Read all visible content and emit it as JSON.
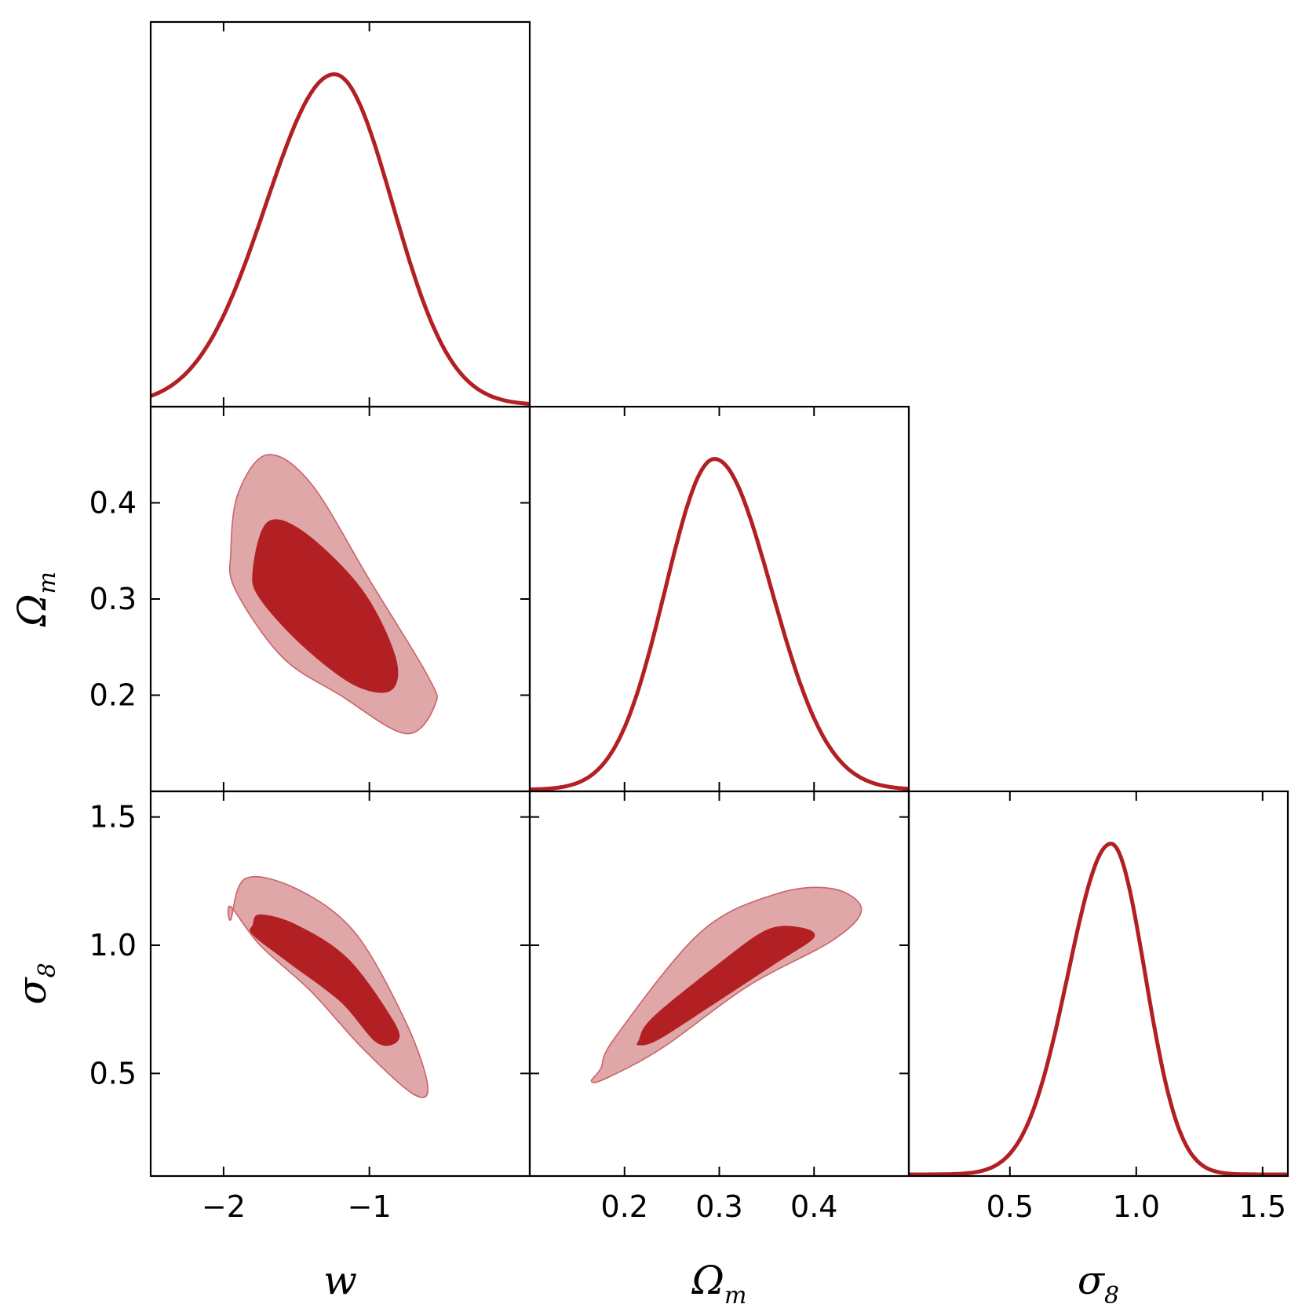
{
  "chart_data": {
    "type": "triangle",
    "colors": {
      "line": "#b22024",
      "inner_fill": "#b22024",
      "outer_fill": "#e0a7a8",
      "outer_edge": "#c9636a"
    },
    "parameters": [
      {
        "id": "w",
        "symbol": "w",
        "subscript": "",
        "range": [
          -2.5,
          0.1
        ],
        "ticks": [
          -2,
          -1
        ],
        "tick_labels": [
          "−2",
          "−1"
        ]
      },
      {
        "id": "Om",
        "symbol": "Ω",
        "subscript": "m",
        "range": [
          0.1,
          0.5
        ],
        "ticks": [
          0.2,
          0.3,
          0.4
        ],
        "tick_labels": [
          "0.2",
          "0.3",
          "0.4"
        ]
      },
      {
        "id": "s8",
        "symbol": "σ",
        "subscript": "8",
        "range": [
          0.1,
          1.6
        ],
        "ticks": [
          0.5,
          1.0,
          1.5
        ],
        "tick_labels": [
          "0.5",
          "1.0",
          "1.5"
        ]
      }
    ],
    "marginals": [
      {
        "param": "w",
        "peak": -1.24,
        "sigma_left": 0.47,
        "sigma_right": 0.4
      },
      {
        "param": "Om",
        "peak": 0.295,
        "sigma_left": 0.052,
        "sigma_right": 0.06
      },
      {
        "param": "s8",
        "peak": 0.9,
        "sigma_left": 0.17,
        "sigma_right": 0.135
      }
    ],
    "contours": [
      {
        "x": "w",
        "y": "Om",
        "outer": [
          [
            -1.95,
            0.35
          ],
          [
            -1.9,
            0.41
          ],
          [
            -1.7,
            0.45
          ],
          [
            -1.4,
            0.42
          ],
          [
            -1.0,
            0.32
          ],
          [
            -0.6,
            0.22
          ],
          [
            -0.55,
            0.19
          ],
          [
            -0.75,
            0.16
          ],
          [
            -1.2,
            0.2
          ],
          [
            -1.6,
            0.24
          ],
          [
            -1.92,
            0.31
          ]
        ],
        "inner": [
          [
            -1.8,
            0.33
          ],
          [
            -1.7,
            0.38
          ],
          [
            -1.45,
            0.37
          ],
          [
            -1.05,
            0.31
          ],
          [
            -0.82,
            0.24
          ],
          [
            -0.85,
            0.205
          ],
          [
            -1.1,
            0.21
          ],
          [
            -1.45,
            0.25
          ],
          [
            -1.75,
            0.3
          ]
        ]
      },
      {
        "x": "w",
        "y": "s8",
        "outer": [
          [
            -1.95,
            1.1
          ],
          [
            -1.85,
            1.26
          ],
          [
            -1.5,
            1.22
          ],
          [
            -1.1,
            1.05
          ],
          [
            -0.75,
            0.7
          ],
          [
            -0.6,
            0.45
          ],
          [
            -0.7,
            0.42
          ],
          [
            -1.05,
            0.6
          ],
          [
            -1.4,
            0.82
          ],
          [
            -1.75,
            1.0
          ],
          [
            -1.95,
            1.15
          ]
        ],
        "inner": [
          [
            -1.8,
            1.08
          ],
          [
            -1.75,
            1.12
          ],
          [
            -1.5,
            1.08
          ],
          [
            -1.15,
            0.95
          ],
          [
            -0.85,
            0.72
          ],
          [
            -0.8,
            0.63
          ],
          [
            -0.95,
            0.62
          ],
          [
            -1.2,
            0.78
          ],
          [
            -1.55,
            0.93
          ],
          [
            -1.8,
            1.04
          ]
        ]
      },
      {
        "x": "Om",
        "y": "s8",
        "outer": [
          [
            0.175,
            0.52
          ],
          [
            0.19,
            0.64
          ],
          [
            0.28,
            1.05
          ],
          [
            0.36,
            1.2
          ],
          [
            0.42,
            1.22
          ],
          [
            0.45,
            1.14
          ],
          [
            0.42,
            1.02
          ],
          [
            0.33,
            0.84
          ],
          [
            0.24,
            0.6
          ],
          [
            0.18,
            0.48
          ],
          [
            0.165,
            0.47
          ]
        ],
        "inner": [
          [
            0.215,
            0.63
          ],
          [
            0.23,
            0.72
          ],
          [
            0.3,
            0.93
          ],
          [
            0.35,
            1.06
          ],
          [
            0.385,
            1.07
          ],
          [
            0.4,
            1.03
          ],
          [
            0.36,
            0.93
          ],
          [
            0.29,
            0.76
          ],
          [
            0.235,
            0.63
          ],
          [
            0.215,
            0.61
          ]
        ]
      }
    ]
  }
}
